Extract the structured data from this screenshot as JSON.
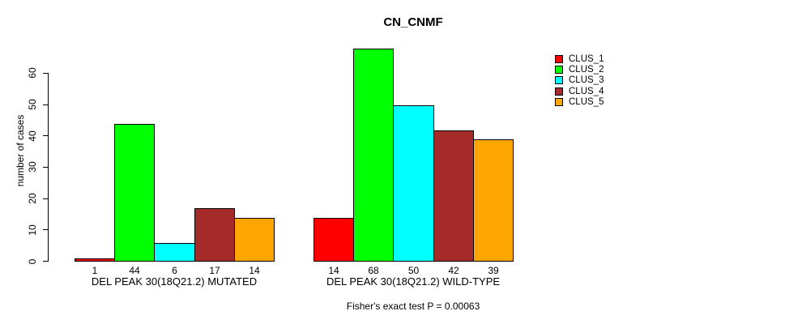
{
  "title": "CN_CNMF",
  "footnote": "Fisher's exact test P = 0.00063",
  "chart_data": {
    "type": "bar",
    "title": "CN_CNMF",
    "xlabel": "",
    "ylabel": "number of cases",
    "ylim": [
      0,
      68
    ],
    "yticks": [
      0,
      10,
      20,
      30,
      40,
      50,
      60
    ],
    "grid": false,
    "legend_position": "topright",
    "categories": [
      "DEL PEAK 30(18Q21.2) MUTATED",
      "DEL PEAK 30(18Q21.2) WILD-TYPE"
    ],
    "series": [
      {
        "name": "CLUS_1",
        "color": "#FF0000",
        "values": [
          1,
          14
        ]
      },
      {
        "name": "CLUS_2",
        "color": "#00FF00",
        "values": [
          44,
          68
        ]
      },
      {
        "name": "CLUS_3",
        "color": "#00FFFF",
        "values": [
          6,
          50
        ]
      },
      {
        "name": "CLUS_4",
        "color": "#A52A2A",
        "values": [
          17,
          42
        ]
      },
      {
        "name": "CLUS_5",
        "color": "#FFA500",
        "values": [
          14,
          39
        ]
      }
    ],
    "groups": [
      {
        "label": "DEL PEAK 30(18Q21.2) MUTATED",
        "values": [
          1,
          44,
          6,
          17,
          14
        ]
      },
      {
        "label": "DEL PEAK 30(18Q21.2) WILD-TYPE",
        "values": [
          14,
          68,
          50,
          42,
          39
        ]
      }
    ],
    "bar_value_labels_shown": true,
    "annotation": "Fisher's exact test P = 0.00063"
  }
}
